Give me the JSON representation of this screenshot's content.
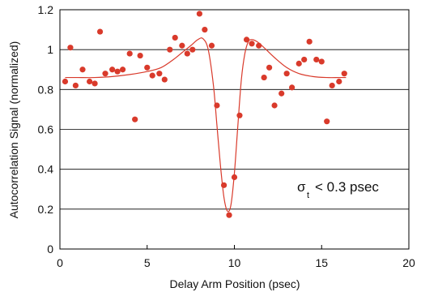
{
  "chart_data": {
    "type": "scatter",
    "xlabel": "Delay Arm Position (psec)",
    "ylabel": "Autocorrelation Signal (normalized)",
    "xlim": [
      0,
      20
    ],
    "ylim": [
      0,
      1.2
    ],
    "x_ticks": [
      "0",
      "5",
      "10",
      "15",
      "20"
    ],
    "y_ticks": [
      "0",
      "0.2",
      "0.4",
      "0.6",
      "0.8",
      "1",
      "1.2"
    ],
    "grid": "horizontal",
    "annotation": {
      "symbol": "σ",
      "subscript": "t",
      "text": "< 0.3 psec"
    },
    "colors": {
      "points": "#d93a2b",
      "fit": "#d93a2b",
      "axes": "#000000",
      "grid": "#000000"
    },
    "series": [
      {
        "kind": "points",
        "x": [
          0.3,
          0.6,
          0.9,
          1.3,
          1.7,
          2.0,
          2.3,
          2.6,
          3.0,
          3.3,
          3.6,
          4.0,
          4.3,
          4.6,
          5.0,
          5.3,
          5.7,
          6.0,
          6.3,
          6.6,
          7.0,
          7.3,
          7.6,
          8.0,
          8.3,
          8.7,
          9.0,
          9.4,
          9.7,
          10.0,
          10.3,
          10.7,
          11.0,
          11.4,
          11.7,
          12.0,
          12.3,
          12.7,
          13.0,
          13.3,
          13.7,
          14.0,
          14.3,
          14.7,
          15.0,
          15.3,
          15.6,
          16.0,
          16.3
        ],
        "y": [
          0.84,
          1.01,
          0.82,
          0.9,
          0.84,
          0.83,
          1.09,
          0.88,
          0.9,
          0.89,
          0.9,
          0.98,
          0.65,
          0.97,
          0.91,
          0.87,
          0.88,
          0.85,
          1.0,
          1.06,
          1.02,
          0.98,
          1.0,
          1.18,
          1.1,
          1.02,
          0.72,
          0.32,
          0.17,
          0.36,
          0.67,
          1.05,
          1.03,
          1.02,
          0.86,
          0.91,
          0.72,
          0.78,
          0.88,
          0.81,
          0.93,
          0.95,
          1.04,
          0.95,
          0.94,
          0.64,
          0.82,
          0.84,
          0.88
        ]
      },
      {
        "kind": "fit-line",
        "x": [
          0.3,
          1.0,
          2.0,
          3.0,
          4.0,
          5.0,
          5.8,
          6.5,
          7.0,
          7.5,
          7.9,
          8.2,
          8.5,
          8.8,
          9.0,
          9.2,
          9.4,
          9.6,
          9.8,
          10.0,
          10.2,
          10.4,
          10.6,
          10.8,
          11.0,
          11.3,
          11.7,
          12.3,
          13.0,
          13.7,
          14.5,
          15.3,
          16.0,
          16.4
        ],
        "y": [
          0.86,
          0.86,
          0.86,
          0.865,
          0.875,
          0.89,
          0.91,
          0.95,
          0.985,
          1.02,
          1.05,
          1.055,
          1.0,
          0.82,
          0.62,
          0.42,
          0.26,
          0.19,
          0.22,
          0.38,
          0.62,
          0.85,
          0.98,
          1.04,
          1.05,
          1.04,
          1.01,
          0.96,
          0.91,
          0.88,
          0.865,
          0.86,
          0.86,
          0.86
        ]
      }
    ]
  }
}
